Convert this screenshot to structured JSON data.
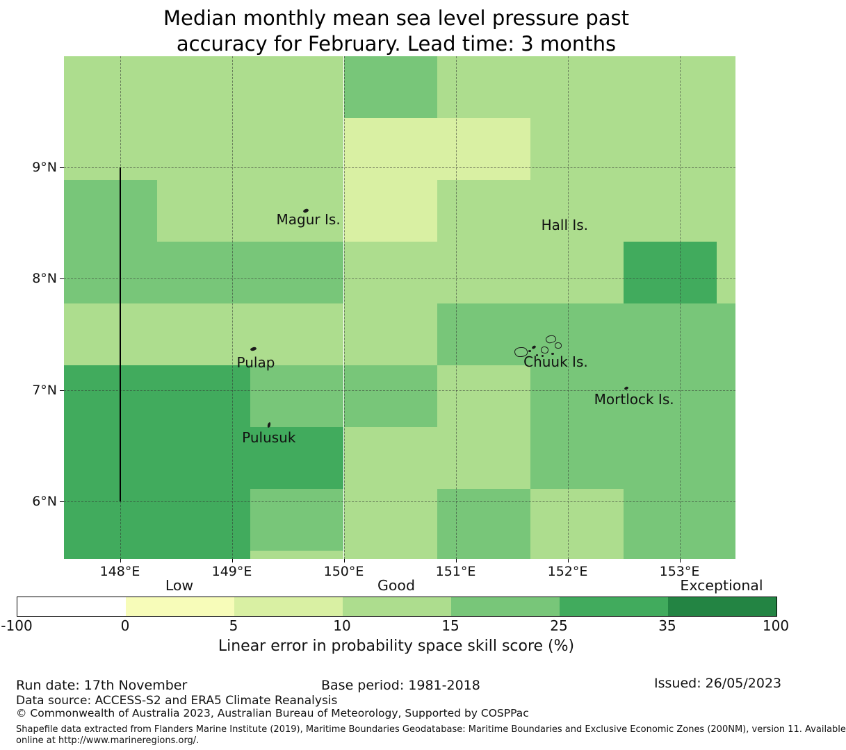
{
  "title": {
    "line1": "Median monthly mean sea level pressure past",
    "line2": "accuracy for February. Lead time: 3 months"
  },
  "chart_data": {
    "type": "heatmap",
    "title": "Median monthly mean sea level pressure past accuracy for February. Lead time: 3 months",
    "lon_range": [
      147.5,
      153.5
    ],
    "lat_range": [
      5.48,
      10.0
    ],
    "grid_on": true,
    "lon_ticks": [
      {
        "lon": 148,
        "label": "148°E"
      },
      {
        "lon": 149,
        "label": "149°E"
      },
      {
        "lon": 150,
        "label": "150°E"
      },
      {
        "lon": 151,
        "label": "151°E"
      },
      {
        "lon": 152,
        "label": "152°E"
      },
      {
        "lon": 153,
        "label": "153°E"
      }
    ],
    "lat_ticks": [
      {
        "lat": 9,
        "label": "9°N"
      },
      {
        "lat": 8,
        "label": "8°N"
      },
      {
        "lat": 7,
        "label": "7°N"
      },
      {
        "lat": 6,
        "label": "6°N"
      }
    ],
    "lon_edges": [
      147.5,
      148.3333,
      149.1667,
      150.0,
      150.8333,
      151.6667,
      152.5,
      153.3333,
      153.5
    ],
    "lat_edges": [
      10.0,
      9.4444,
      8.8889,
      8.3333,
      7.7778,
      7.2222,
      6.6667,
      6.1111,
      5.5556,
      5.48
    ],
    "bins": [
      {
        "key": "-100-0",
        "color": "#ffffff"
      },
      {
        "key": "0-5",
        "color": "#f7fcb9"
      },
      {
        "key": "5-10",
        "color": "#d9f0a3"
      },
      {
        "key": "10-15",
        "color": "#addd8e"
      },
      {
        "key": "15-25",
        "color": "#78c679"
      },
      {
        "key": "25-35",
        "color": "#41ab5d"
      },
      {
        "key": "35-100",
        "color": "#238443"
      }
    ],
    "grid": [
      [
        "10-15",
        "10-15",
        "10-15",
        "15-25",
        "10-15",
        "10-15",
        "10-15",
        "10-15"
      ],
      [
        "10-15",
        "10-15",
        "10-15",
        "5-10",
        "5-10",
        "10-15",
        "10-15",
        "10-15"
      ],
      [
        "15-25",
        "10-15",
        "10-15",
        "5-10",
        "10-15",
        "10-15",
        "10-15",
        "10-15"
      ],
      [
        "15-25",
        "15-25",
        "15-25",
        "10-15",
        "10-15",
        "10-15",
        "25-35",
        "10-15"
      ],
      [
        "10-15",
        "10-15",
        "10-15",
        "10-15",
        "15-25",
        "15-25",
        "15-25",
        "15-25"
      ],
      [
        "25-35",
        "25-35",
        "15-25",
        "15-25",
        "10-15",
        "15-25",
        "15-25",
        "15-25"
      ],
      [
        "25-35",
        "25-35",
        "25-35",
        "10-15",
        "10-15",
        "15-25",
        "15-25",
        "15-25"
      ],
      [
        "25-35",
        "25-35",
        "15-25",
        "10-15",
        "15-25",
        "10-15",
        "15-25",
        "15-25"
      ],
      [
        "25-35",
        "25-35",
        "10-15",
        "10-15",
        "15-25",
        "10-15",
        "15-25",
        "15-25"
      ]
    ],
    "boundary_line": {
      "lon": 148,
      "lat_from": 9,
      "lat_to": 6
    },
    "islands": [
      {
        "name": "Magur Is.",
        "lon": 149.684,
        "lat": 8.532
      },
      {
        "name": "Hall Is.",
        "lon": 151.974,
        "lat": 8.482
      },
      {
        "name": "Pulap",
        "lon": 149.214,
        "lat": 7.248
      },
      {
        "name": "Chuuk Is.",
        "lon": 151.894,
        "lat": 7.254
      },
      {
        "name": "Mortlock Is.",
        "lon": 152.594,
        "lat": 6.918
      },
      {
        "name": "Pulusuk",
        "lon": 149.331,
        "lat": 6.575
      }
    ],
    "island_marks": [
      {
        "lon": 149.659,
        "lat": 8.613,
        "w": 8,
        "h": 5,
        "style": "fill",
        "rot": -20
      },
      {
        "lon": 149.195,
        "lat": 7.367,
        "w": 9,
        "h": 5,
        "style": "fill",
        "rot": -15
      },
      {
        "lon": 149.331,
        "lat": 6.688,
        "w": 4,
        "h": 8,
        "style": "fill",
        "rot": 15
      },
      {
        "lon": 152.526,
        "lat": 7.018,
        "w": 6,
        "h": 4,
        "style": "fill",
        "rot": -25
      },
      {
        "lon": 151.845,
        "lat": 7.46,
        "w": 13,
        "h": 9,
        "style": "outline",
        "rot": -8
      },
      {
        "lon": 151.907,
        "lat": 7.404,
        "w": 8,
        "h": 7,
        "style": "outline",
        "rot": 10
      },
      {
        "lon": 151.579,
        "lat": 7.348,
        "w": 17,
        "h": 12,
        "style": "outline",
        "rot": 0
      },
      {
        "lon": 151.79,
        "lat": 7.367,
        "w": 9,
        "h": 8,
        "style": "outline",
        "rot": 20
      },
      {
        "lon": 151.697,
        "lat": 7.386,
        "w": 6,
        "h": 4,
        "style": "fill",
        "rot": -30
      },
      {
        "lon": 151.659,
        "lat": 7.348,
        "w": 4,
        "h": 3,
        "style": "fill",
        "rot": 0
      },
      {
        "lon": 151.777,
        "lat": 7.305,
        "w": 3,
        "h": 3,
        "style": "fill",
        "rot": 0
      },
      {
        "lon": 151.864,
        "lat": 7.324,
        "w": 4,
        "h": 3,
        "style": "fill",
        "rot": 0
      },
      {
        "lon": 151.728,
        "lat": 7.311,
        "w": 3,
        "h": 3,
        "style": "fill",
        "rot": 0
      }
    ],
    "legend": {
      "ticks": [
        "-100",
        "0",
        "5",
        "10",
        "15",
        "25",
        "35",
        "100"
      ],
      "categories": [
        {
          "label": "Low",
          "segment": 1
        },
        {
          "label": "Good",
          "segment": 3
        },
        {
          "label": "Exceptional",
          "segment": 6
        }
      ],
      "caption": "Linear error in probability space skill score (%)"
    }
  },
  "footer": {
    "run_date": "Run date: 17th November",
    "base_period": "Base period: 1981-2018",
    "issued": "Issued: 26/05/2023",
    "data_source": "Data source: ACCESS-S2 and ERA5 Climate Reanalysis",
    "copyright": "© Commonwealth of Australia 2023, Australian Bureau of Meteorology, Supported by COSPPac",
    "shapefile_line1": "Shapefile data extracted from Flanders Marine Institute (2019), Maritime Boundaries Geodatabase: Maritime Boundaries and Exclusive Economic Zones (200NM), version 11. Available",
    "shapefile_line2": "online at http://www.marineregions.org/."
  }
}
